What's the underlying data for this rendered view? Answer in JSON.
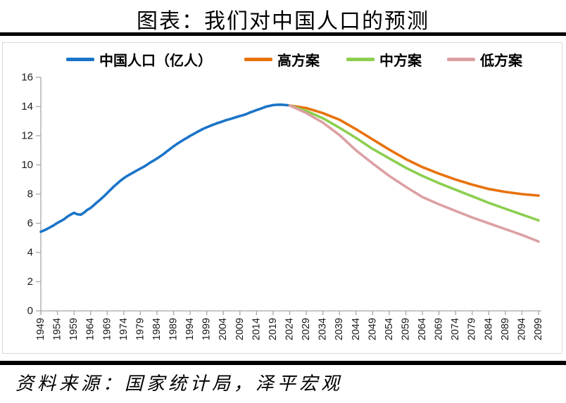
{
  "page": {
    "title": "图表：我们对中国人口的预测",
    "source": "资料来源：国家统计局，泽平宏观"
  },
  "colors": {
    "actual": "#1B74C8",
    "high": "#E8720C",
    "mid": "#8CCE50",
    "low": "#DCA0A4",
    "axis": "#A6A6A6",
    "tick_label": "#1A1A1A",
    "rule": "#000000",
    "chart_border": "#D9D9D9"
  },
  "chart_data": {
    "type": "line",
    "title": "图表：我们对中国人口的预测",
    "xlabel": "",
    "ylabel": "",
    "unit": "亿人",
    "ylim": [
      0,
      16
    ],
    "yticks": [
      0,
      2,
      4,
      6,
      8,
      10,
      12,
      14,
      16
    ],
    "xlim": [
      1949,
      2099
    ],
    "xticks": [
      1949,
      1954,
      1959,
      1964,
      1969,
      1974,
      1979,
      1984,
      1989,
      1994,
      1999,
      2004,
      2009,
      2014,
      2019,
      2024,
      2029,
      2034,
      2039,
      2044,
      2049,
      2054,
      2059,
      2064,
      2069,
      2074,
      2079,
      2084,
      2089,
      2094,
      2099
    ],
    "grid": false,
    "legend_position": "top",
    "source_note": "资料来源：国家统计局，泽平宏观",
    "series": [
      {
        "name": "中国人口（亿人）",
        "color": "#1B74C8",
        "x": [
          1949,
          1950,
          1951,
          1952,
          1953,
          1954,
          1955,
          1956,
          1957,
          1958,
          1959,
          1960,
          1961,
          1962,
          1963,
          1964,
          1965,
          1966,
          1967,
          1968,
          1969,
          1970,
          1971,
          1972,
          1973,
          1974,
          1975,
          1976,
          1977,
          1978,
          1979,
          1980,
          1981,
          1982,
          1983,
          1984,
          1985,
          1986,
          1987,
          1988,
          1989,
          1990,
          1991,
          1992,
          1993,
          1994,
          1995,
          1996,
          1997,
          1998,
          1999,
          2000,
          2001,
          2002,
          2003,
          2004,
          2005,
          2006,
          2007,
          2008,
          2009,
          2010,
          2011,
          2012,
          2013,
          2014,
          2015,
          2016,
          2017,
          2018,
          2019,
          2020,
          2021,
          2022,
          2023,
          2024
        ],
        "values": [
          5.42,
          5.52,
          5.63,
          5.75,
          5.88,
          6.03,
          6.15,
          6.28,
          6.46,
          6.6,
          6.72,
          6.62,
          6.59,
          6.73,
          6.92,
          7.05,
          7.25,
          7.45,
          7.64,
          7.85,
          8.07,
          8.3,
          8.52,
          8.72,
          8.92,
          9.09,
          9.24,
          9.37,
          9.5,
          9.63,
          9.75,
          9.87,
          10.01,
          10.17,
          10.3,
          10.44,
          10.59,
          10.75,
          10.93,
          11.1,
          11.27,
          11.43,
          11.58,
          11.72,
          11.85,
          11.99,
          12.11,
          12.24,
          12.36,
          12.48,
          12.58,
          12.67,
          12.76,
          12.85,
          12.92,
          13.0,
          13.08,
          13.14,
          13.21,
          13.28,
          13.35,
          13.41,
          13.49,
          13.59,
          13.67,
          13.76,
          13.83,
          13.92,
          14.0,
          14.05,
          14.1,
          14.12,
          14.13,
          14.12,
          14.1,
          14.07
        ]
      },
      {
        "name": "高方案",
        "color": "#E8720C",
        "x": [
          2024,
          2029,
          2034,
          2039,
          2044,
          2049,
          2054,
          2059,
          2064,
          2069,
          2074,
          2079,
          2084,
          2089,
          2094,
          2099
        ],
        "values": [
          14.07,
          13.9,
          13.55,
          13.1,
          12.45,
          11.75,
          11.05,
          10.4,
          9.85,
          9.4,
          9.0,
          8.65,
          8.35,
          8.15,
          8.0,
          7.9
        ]
      },
      {
        "name": "中方案",
        "color": "#8CCE50",
        "x": [
          2024,
          2029,
          2034,
          2039,
          2044,
          2049,
          2054,
          2059,
          2064,
          2069,
          2074,
          2079,
          2084,
          2089,
          2094,
          2099
        ],
        "values": [
          14.07,
          13.7,
          13.2,
          12.55,
          11.85,
          11.1,
          10.45,
          9.8,
          9.25,
          8.75,
          8.3,
          7.85,
          7.4,
          7.0,
          6.6,
          6.2
        ]
      },
      {
        "name": "低方案",
        "color": "#DCA0A4",
        "x": [
          2024,
          2029,
          2034,
          2039,
          2044,
          2049,
          2054,
          2059,
          2064,
          2069,
          2074,
          2079,
          2084,
          2089,
          2094,
          2099
        ],
        "values": [
          14.07,
          13.55,
          12.9,
          12.05,
          11.0,
          10.1,
          9.25,
          8.5,
          7.8,
          7.3,
          6.85,
          6.4,
          6.0,
          5.6,
          5.2,
          4.75
        ]
      }
    ]
  }
}
